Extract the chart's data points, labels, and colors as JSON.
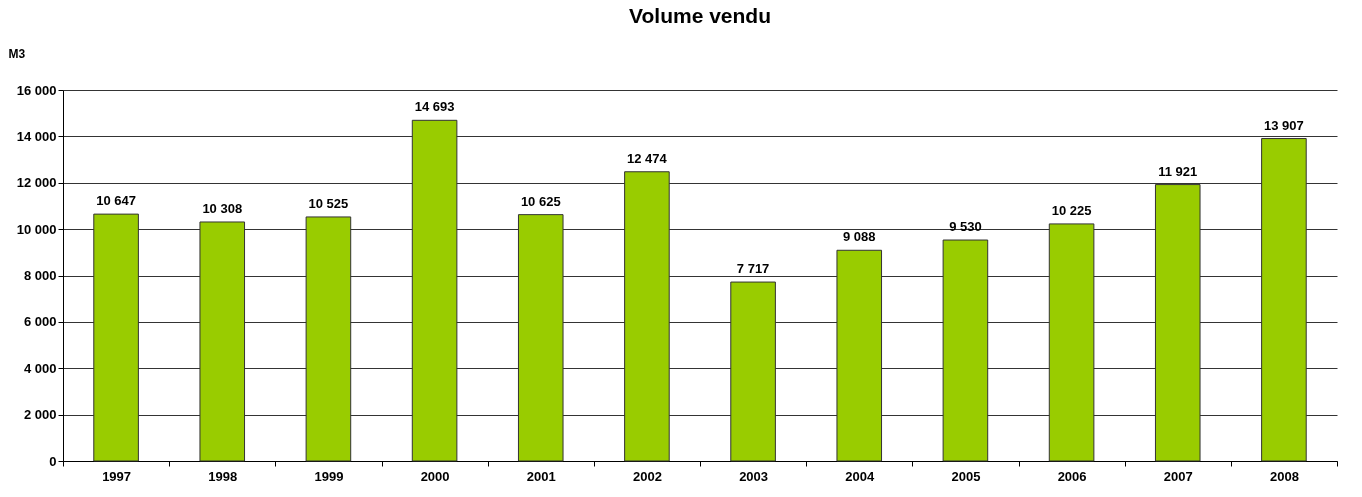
{
  "chart_data": {
    "type": "bar",
    "title": "Volume vendu",
    "ylabel": "M3",
    "categories": [
      "1997",
      "1998",
      "1999",
      "2000",
      "2001",
      "2002",
      "2003",
      "2004",
      "2005",
      "2006",
      "2007",
      "2008"
    ],
    "values": [
      10647,
      10308,
      10525,
      14693,
      10625,
      12474,
      7717,
      9088,
      9530,
      10225,
      11921,
      13907
    ],
    "value_labels": [
      "10 647",
      "10 308",
      "10 525",
      "14 693",
      "10 625",
      "12 474",
      "7 717",
      "9 088",
      "9 530",
      "10 225",
      "11 921",
      "13 907"
    ],
    "color": "#99cc00",
    "ylim": [
      0,
      16000
    ],
    "yticks": [
      {
        "value": 0,
        "label": "0"
      },
      {
        "value": 2000,
        "label": "2 000"
      },
      {
        "value": 4000,
        "label": "4 000"
      },
      {
        "value": 6000,
        "label": "6 000"
      },
      {
        "value": 8000,
        "label": "8 000"
      },
      {
        "value": 10000,
        "label": "10 000"
      },
      {
        "value": 12000,
        "label": "12 000"
      },
      {
        "value": 14000,
        "label": "14 000"
      },
      {
        "value": 16000,
        "label": "16 000"
      }
    ],
    "grid": "y"
  }
}
